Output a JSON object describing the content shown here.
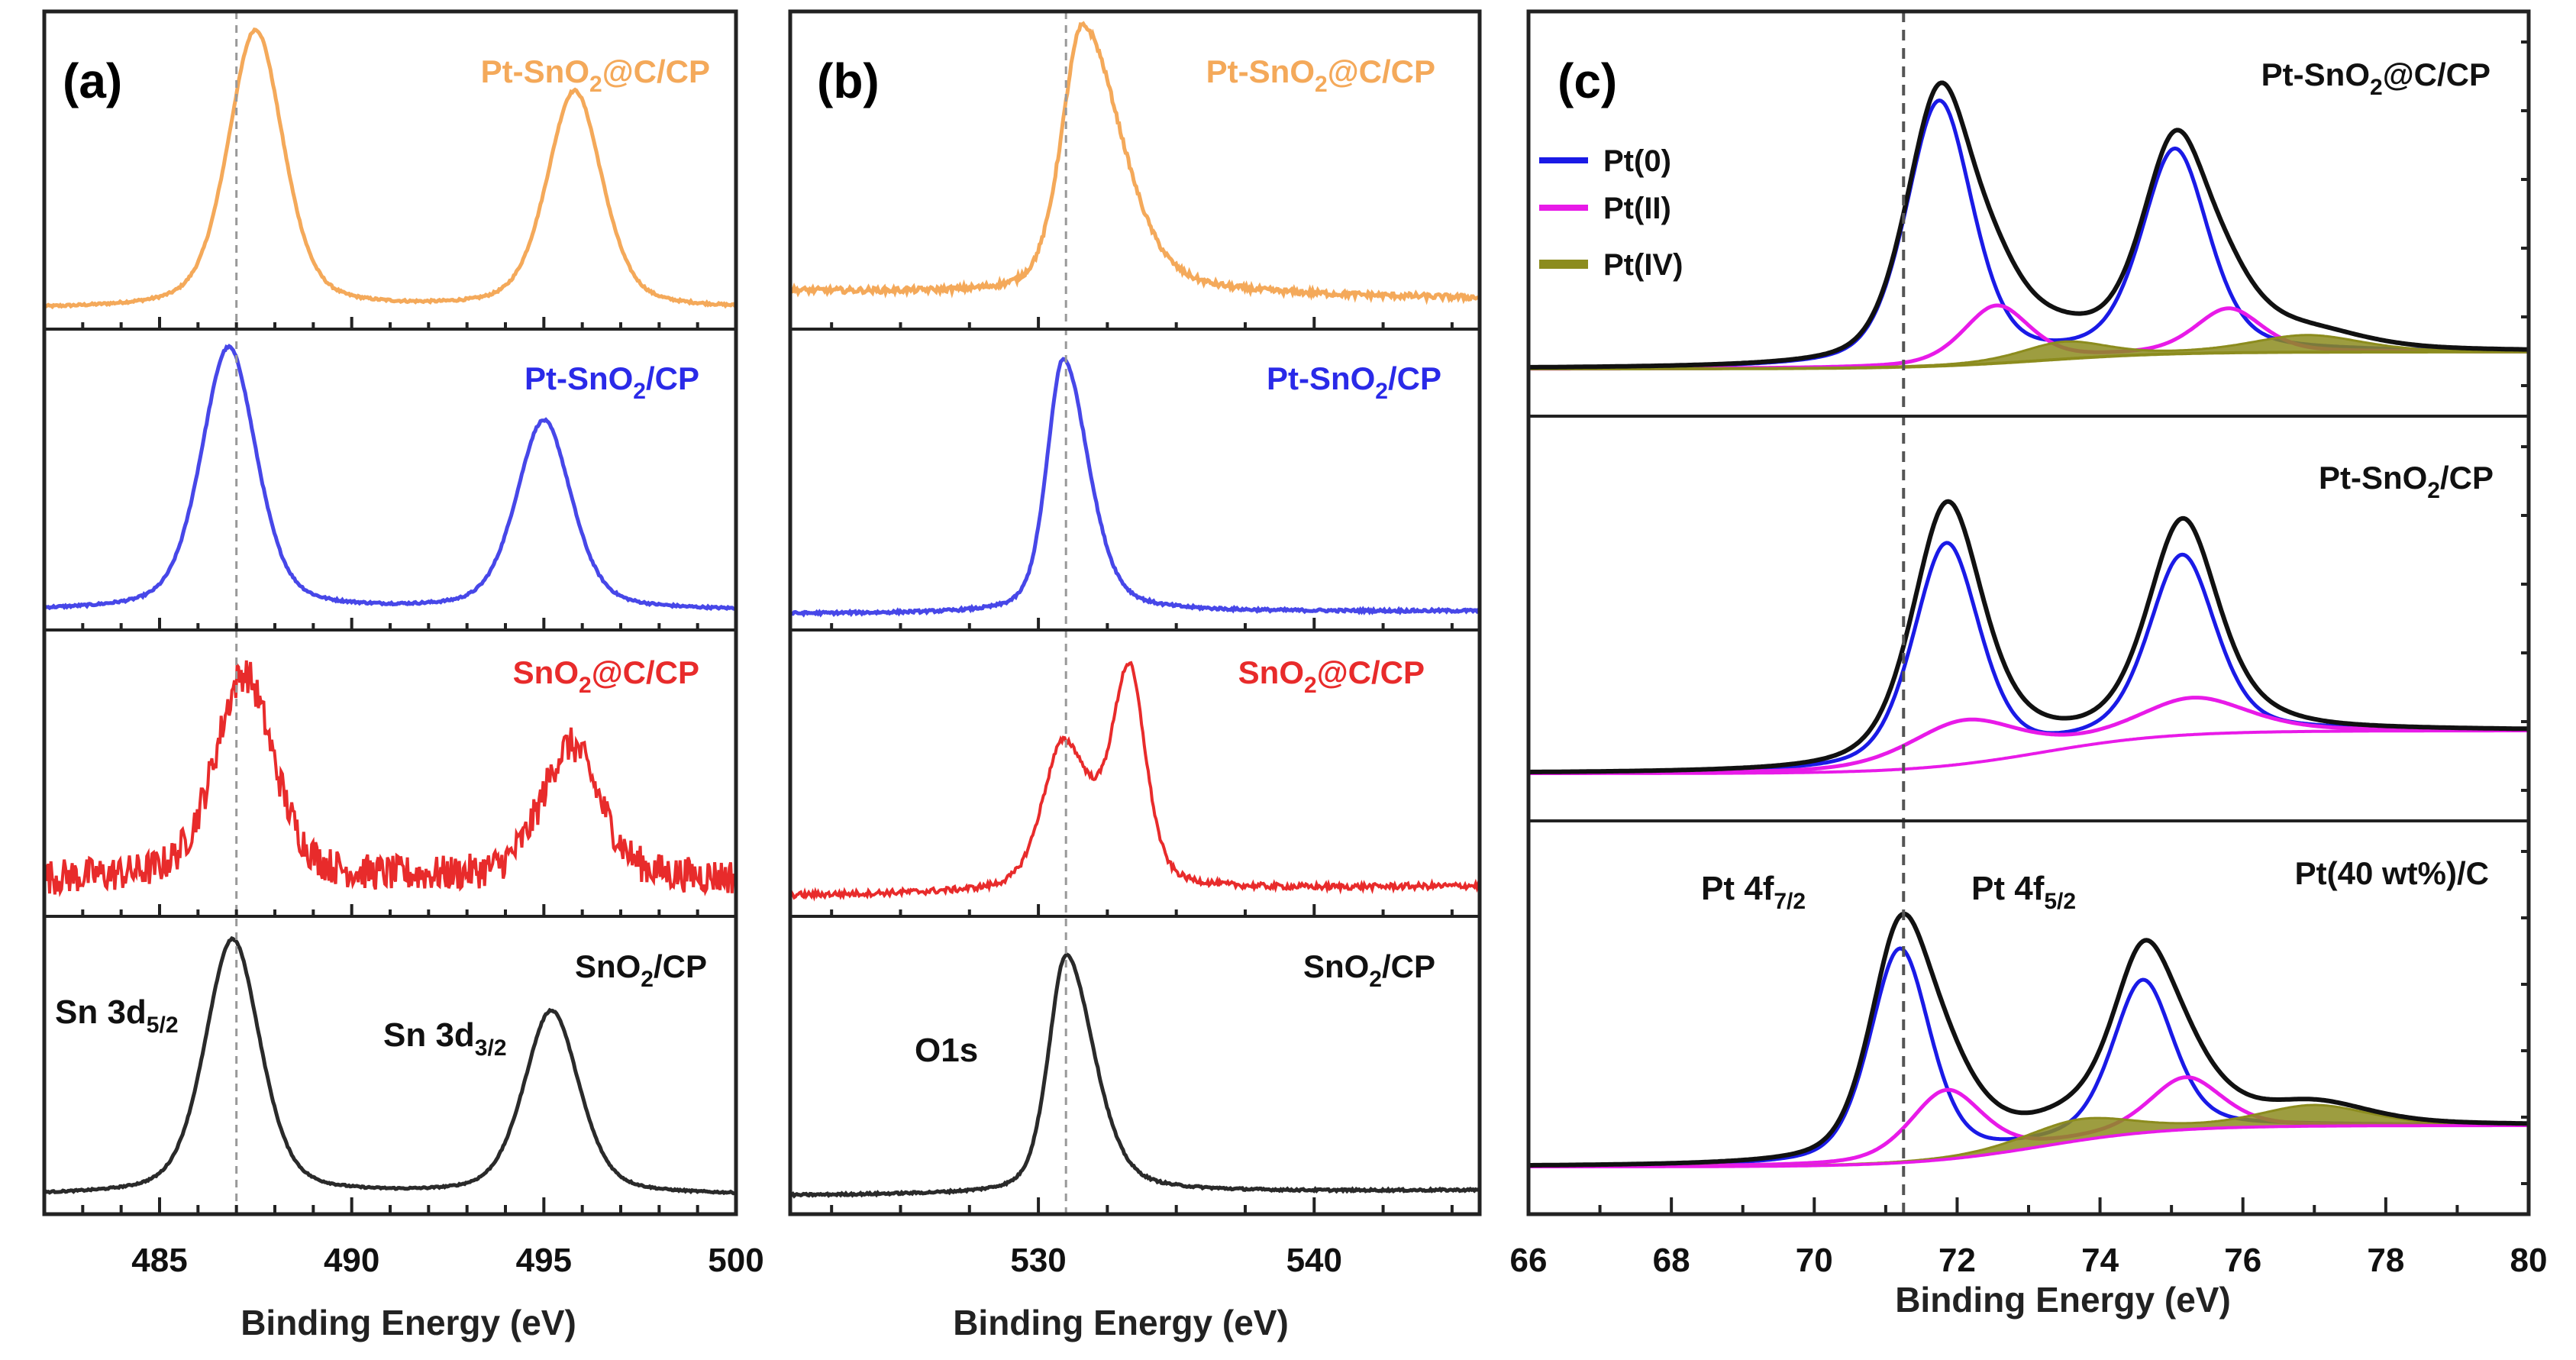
{
  "colors": {
    "orange": "#F4A95A",
    "blue": "#4747E8",
    "red": "#E82B2B",
    "black": "#2A2A2A",
    "pt0": "#1A1AE6",
    "pt2": "#E81AE8",
    "pt4": "#8C8C1E",
    "pt4fill": "#8C8C1E",
    "envelope": "#111111"
  },
  "chart_data": [
    {
      "type": "line",
      "panel": "(a)",
      "title": "",
      "xlabel": "Binding Energy (eV)",
      "ylabel": "",
      "xlim": [
        482,
        500
      ],
      "xticks": [
        485,
        490,
        495,
        500
      ],
      "minor_step": 1,
      "ref_line_x": 487.0,
      "series": [
        {
          "name": "Pt-SnO2@C/CP",
          "label_main": "Pt-SnO",
          "label_sub": "2",
          "label_rest": "@C/CP",
          "color_key": "orange",
          "peaks": [
            {
              "x0": 487.5,
              "amp": 1.0,
              "w": 0.85
            },
            {
              "x0": 495.8,
              "amp": 0.78,
              "w": 0.85
            }
          ],
          "baseline": 0.05,
          "noise": 0.004,
          "ymax": 1.08
        },
        {
          "name": "Pt-SnO2/CP",
          "label_main": "Pt-SnO",
          "label_sub": "2",
          "label_rest": "/CP",
          "color_key": "blue",
          "peaks": [
            {
              "x0": 486.8,
              "amp": 1.0,
              "w": 0.85
            },
            {
              "x0": 495.0,
              "amp": 0.72,
              "w": 0.85
            }
          ],
          "baseline": 0.05,
          "noise": 0.004,
          "ymax": 1.08
        },
        {
          "name": "SnO2@C/CP",
          "label_main": "SnO",
          "label_sub": "2",
          "label_rest": "@C/CP",
          "color_key": "red",
          "peaks": [
            {
              "x0": 487.2,
              "amp": 0.8,
              "w": 0.9
            },
            {
              "x0": 495.7,
              "amp": 0.52,
              "w": 0.9
            }
          ],
          "baseline": 0.12,
          "noise": 0.07,
          "ymax": 1.05
        },
        {
          "name": "SnO2/CP",
          "label_main": "SnO",
          "label_sub": "2",
          "label_rest": "/CP",
          "color_key": "black",
          "peaks": [
            {
              "x0": 486.9,
              "amp": 1.0,
              "w": 0.85
            },
            {
              "x0": 495.2,
              "amp": 0.72,
              "w": 0.85
            }
          ],
          "baseline": 0.05,
          "noise": 0.003,
          "ymax": 1.1
        }
      ],
      "annotations": [
        {
          "main": "Sn 3d",
          "sub": "5/2"
        },
        {
          "main": "Sn 3d",
          "sub": "3/2"
        }
      ]
    },
    {
      "type": "line",
      "panel": "(b)",
      "title": "",
      "xlabel": "Binding Energy (eV)",
      "ylabel": "",
      "xlim": [
        521,
        546
      ],
      "xticks": [
        530,
        540
      ],
      "minor_step": 2.5,
      "ref_line_x": 531.0,
      "series": [
        {
          "name": "Pt-SnO2@C/CP",
          "label_main": "Pt-SnO",
          "label_sub": "2",
          "label_rest": "@C/CP",
          "color_key": "orange",
          "peaks": [
            {
              "x0": 531.6,
              "amp": 1.0,
              "w": 0.9,
              "tail": 2.4
            }
          ],
          "baseline": 0.12,
          "slope": -0.03,
          "noise": 0.01,
          "ymax": 1.12
        },
        {
          "name": "Pt-SnO2/CP",
          "label_main": "Pt-SnO",
          "label_sub": "2",
          "label_rest": "/CP",
          "color_key": "blue",
          "peaks": [
            {
              "x0": 530.9,
              "amp": 1.0,
              "w": 0.7,
              "tail": 1.9
            }
          ],
          "baseline": 0.04,
          "slope": 0.01,
          "noise": 0.005,
          "ymax": 1.12
        },
        {
          "name": "SnO2@C/CP",
          "label_main": "SnO",
          "label_sub": "2",
          "label_rest": "@C/CP",
          "color_key": "red",
          "peaks": [
            {
              "x0": 530.9,
              "amp": 0.6,
              "w": 0.9,
              "tail": 1.5
            },
            {
              "x0": 533.3,
              "amp": 0.88,
              "w": 0.75,
              "tail": 0.9
            }
          ],
          "baseline": 0.06,
          "slope": 0.04,
          "noise": 0.012,
          "ymax": 1.12
        },
        {
          "name": "SnO2/CP",
          "label_main": "SnO",
          "label_sub": "2",
          "label_rest": "/CP",
          "color_key": "black",
          "peaks": [
            {
              "x0": 531.0,
              "amp": 0.95,
              "w": 0.75,
              "tail": 2.0
            }
          ],
          "baseline": 0.05,
          "slope": 0.02,
          "noise": 0.004,
          "ymax": 1.12
        }
      ],
      "annotations": [
        {
          "main": "O1s",
          "sub": ""
        }
      ]
    },
    {
      "type": "line",
      "panel": "(c)",
      "title": "",
      "xlabel": "Binding Energy (eV)",
      "ylabel": "",
      "xlim": [
        66,
        80
      ],
      "xticks": [
        66,
        68,
        70,
        72,
        74,
        76,
        78,
        80
      ],
      "minor_step": 1,
      "ref_line_x": 71.25,
      "legend": [
        {
          "label": "Pt(0)",
          "color_key": "pt0"
        },
        {
          "label": "Pt(II)",
          "color_key": "pt2"
        },
        {
          "label": "Pt(IV)",
          "color_key": "pt4"
        }
      ],
      "legend_position": "top-left",
      "subplots": [
        {
          "name": "Pt-SnO2@C/CP",
          "label_main": "Pt-SnO",
          "label_sub": "2",
          "label_rest": "@C/CP",
          "bg": [
            0.0,
            0.05
          ],
          "components": [
            {
              "state": "Pt(0)",
              "peaks": [
                {
                  "x0": 71.75,
                  "amp": 0.78,
                  "w": 0.55
                },
                {
                  "x0": 75.05,
                  "amp": 0.6,
                  "w": 0.55
                }
              ]
            },
            {
              "state": "Pt(II)",
              "peaks": [
                {
                  "x0": 72.55,
                  "amp": 0.17,
                  "w": 0.55
                },
                {
                  "x0": 75.8,
                  "amp": 0.13,
                  "w": 0.55
                }
              ]
            },
            {
              "state": "Pt(IV)",
              "peaks": [
                {
                  "x0": 73.5,
                  "amp": 0.05,
                  "w": 0.7
                },
                {
                  "x0": 76.9,
                  "amp": 0.05,
                  "w": 0.9
                }
              ]
            }
          ],
          "ymax": 0.95
        },
        {
          "name": "Pt-SnO2/CP",
          "label_main": "Pt-SnO",
          "label_sub": "2",
          "label_rest": "/CP",
          "bg": [
            0.0,
            0.12
          ],
          "components": [
            {
              "state": "Pt(0)",
              "peaks": [
                {
                  "x0": 71.85,
                  "amp": 0.62,
                  "w": 0.55
                },
                {
                  "x0": 75.15,
                  "amp": 0.5,
                  "w": 0.55
                }
              ]
            },
            {
              "state": "Pt(II)",
              "peaks": [
                {
                  "x0": 72.1,
                  "amp": 0.12,
                  "w": 0.9
                },
                {
                  "x0": 75.3,
                  "amp": 0.1,
                  "w": 0.9
                }
              ]
            }
          ],
          "ymax": 0.9
        },
        {
          "name": "Pt(40 wt%)/C",
          "label_main": "Pt(40 wt%)/C",
          "label_sub": "",
          "label_rest": "",
          "bg": [
            0.0,
            0.12
          ],
          "components": [
            {
              "state": "Pt(0)",
              "peaks": [
                {
                  "x0": 71.2,
                  "amp": 0.62,
                  "w": 0.5
                },
                {
                  "x0": 74.6,
                  "amp": 0.44,
                  "w": 0.5
                }
              ]
            },
            {
              "state": "Pt(II)",
              "peaks": [
                {
                  "x0": 71.85,
                  "amp": 0.2,
                  "w": 0.6
                },
                {
                  "x0": 75.2,
                  "amp": 0.15,
                  "w": 0.6
                }
              ]
            },
            {
              "state": "Pt(IV)",
              "peaks": [
                {
                  "x0": 73.7,
                  "amp": 0.06,
                  "w": 0.9
                },
                {
                  "x0": 77.0,
                  "amp": 0.06,
                  "w": 0.9
                }
              ]
            }
          ],
          "ymax": 0.9
        }
      ],
      "annotations": [
        {
          "main": "Pt 4f",
          "sub": "7/2"
        },
        {
          "main": "Pt 4f",
          "sub": "5/2"
        }
      ]
    }
  ]
}
